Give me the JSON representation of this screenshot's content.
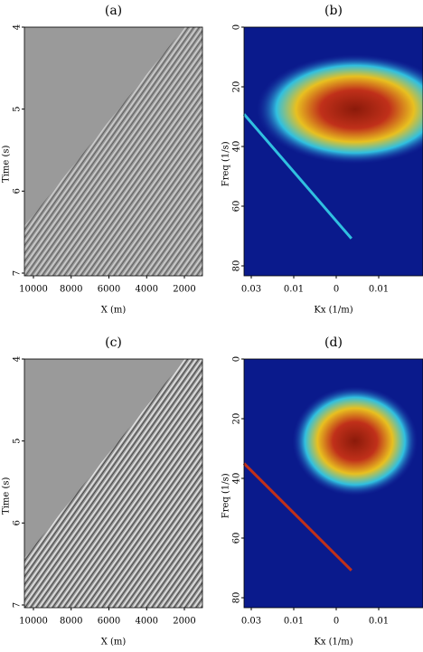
{
  "panels": [
    {
      "label": "(a)",
      "x_label": "X (m)",
      "y_label": "Time (s)",
      "x_ticks": [
        "10000",
        "8000",
        "6000",
        "4000",
        "2000"
      ],
      "y_ticks": [
        "4",
        "5",
        "6",
        "7"
      ]
    },
    {
      "label": "(b)",
      "x_label": "Kx (1/m)",
      "y_label": "Freq (1/s)",
      "x_ticks": [
        "0.03",
        "0.01",
        "0",
        "0.01"
      ],
      "y_ticks": [
        "0",
        "20",
        "40",
        "60",
        "80"
      ]
    },
    {
      "label": "(c)",
      "x_label": "X (m)",
      "y_label": "Time (s)",
      "x_ticks": [
        "10000",
        "8000",
        "6000",
        "4000",
        "2000"
      ],
      "y_ticks": [
        "4",
        "5",
        "6",
        "7"
      ]
    },
    {
      "label": "(d)",
      "x_label": "Kx (1/m)",
      "y_label": "Freq (1/s)",
      "x_ticks": [
        "0.03",
        "0.01",
        "0",
        "0.01"
      ],
      "y_ticks": [
        "0",
        "20",
        "40",
        "60",
        "80"
      ]
    }
  ]
}
